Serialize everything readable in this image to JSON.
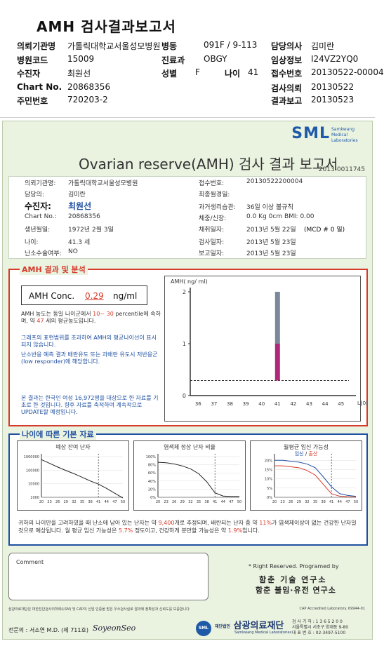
{
  "header": {
    "title": "AMH 검사결과보고서",
    "rows": [
      {
        "l1": "의뢰기관명",
        "v1": "가톨릭대학교서울성모병원",
        "l2": "병동",
        "v2": "091F / 9-113",
        "l3": "담당의사",
        "v3": "김미란"
      },
      {
        "l1": "병원코드",
        "v1": "15009",
        "l2": "진료과",
        "v2": "OBGY",
        "l3": "임상정보",
        "v3": "I24VZ2YQ0"
      },
      {
        "l1": "수진자",
        "v1": "최원선",
        "l2": "성별",
        "v2": "F",
        "l2b": "나이",
        "v2b": "41",
        "l3": "접수번호",
        "v3": "20130522-00004"
      },
      {
        "l1": "Chart No.",
        "v1": "20868356",
        "l2": "",
        "v2": "",
        "l3": "검사의뢰",
        "v3": "20130522"
      },
      {
        "l1": "주민번호",
        "v1": "720203-2",
        "l2": "",
        "v2": "",
        "l3": "결과보고",
        "v3": "20130523"
      }
    ]
  },
  "report": {
    "logo": "SML",
    "logo_sub": "Samkwang Medical Laboratories",
    "title": "Ovarian reserve(AMH) 검사 결과 보고서",
    "number": "2013-0011745",
    "info_left": [
      {
        "label": "의뢰기관명:",
        "value": "가톨릭대학교서울성모병원"
      },
      {
        "label": "담당의:",
        "value": "김미란"
      },
      {
        "label": "수진자:",
        "value": "최원선"
      },
      {
        "label": "Chart No.:",
        "value": "20868356"
      },
      {
        "label": "생년월일:",
        "value": "1972년 2월 3일"
      },
      {
        "label": "나이:",
        "value": "41.3 세"
      },
      {
        "label": "난소수술여부:",
        "value": "NO"
      }
    ],
    "info_right": [
      {
        "label": "접수번호:",
        "value": "20130522200004"
      },
      {
        "label": "최종월경일:",
        "value": ""
      },
      {
        "label": "과거생리습관:",
        "value": "36일 이상 불규칙"
      },
      {
        "label": "체중/신장:",
        "value": "0.0  Kg        0cm    BMI:   0.00"
      },
      {
        "label": "채취일자:",
        "value": "2013년 5월 22일"
      },
      {
        "label": "검사일자:",
        "value": "2013년 5월 23일"
      },
      {
        "label": "보고일자:",
        "value": "2013년 5월 23일"
      }
    ],
    "mcd": "(MCD # 0 일)"
  },
  "amh": {
    "section_title": "AMH 결과 및 분석",
    "conc_label": "AMH Conc.",
    "conc_value": "0.29",
    "conc_unit": "ng/ml",
    "p1_a": "AMH 농도는 동일 나이군에서",
    "p1_range": "10~ 30",
    "p1_b": "percentile에 속하며, 약",
    "p1_age": "47",
    "p1_c": "세의 평균농도입니다.",
    "p2": "그래프의 표현범위를 초과하여 AMH의 평균나이선이 표시되지 않습니다.",
    "p3": "난소반응 예측 결과 배란유도 또는 과배란 유도시 저반응군 (low responder)에 해당합니다.",
    "p4": "본 결과는 한국인 여성 16,972명을 대상으로 한 자료를 기초로 한 것입니다. 향후 자료를 축적하여 계속적으로 UPDATE할 예정입니다."
  },
  "age": {
    "section_title": "나이에 따른 기본 자료",
    "chart_titles": [
      "예상 잔여 난자",
      "염색체 정상 난자 비율",
      "월평균 임신 가능성"
    ],
    "legend_pregnancy": "임신",
    "legend_birth": "출산",
    "summary_a": "귀하의 나이만을 고려하였을 때 난소에 남아 있는 난자는 약",
    "summary_eggs": "9,400",
    "summary_b": "개로 추정되며, 배란되는 난자 중 약",
    "summary_pct": "11%",
    "summary_c": "가 염색체이상이 없는 건강한 난자일 것으로 예상됩니다. 월 평균 임신 가능성은",
    "summary_preg": "5.7%",
    "summary_d": "정도이고, 건강하게 분만할 가능성은 약",
    "summary_birth": "1.9%",
    "summary_e": "입니다."
  },
  "footer": {
    "comment_label": "Comment",
    "rights": "* Right Reserved. Programed by",
    "inst1": "함춘 기술 연구소",
    "inst2": "함춘 불임·유전 연구소",
    "accr": "삼광의료재단은 대한진단검사의학회(LSM) 및 CAP의 신임 인증을 받은 우수검사실로 결과에 정확성과 신뢰도를 보증합니다.",
    "cap": "CAP  Accredited  Laboratory.  69944-01",
    "sign": "전문의 : 서소연 M.D. (제 711호)",
    "signature": "SoyeonSeo",
    "foundation": "삼광의료재단",
    "foundation_prefix": "재단법인",
    "foundation_sub": "Samkwang Medical Laboratories",
    "contact1": "검 사 기 하 : 1 3 6 5 2 0 0",
    "contact2": "서울특별시 서초구 양재동 9-80",
    "contact3": "대 표 번 호 : 02-3497-5100"
  },
  "colors": {
    "accent_red": "#d63a2a",
    "accent_blue": "#1f4fa0",
    "paper_green": "#eaf2e0"
  },
  "chart_data": [
    {
      "type": "bar",
      "title": "",
      "ylabel": "AMH( ng/ ml)",
      "xlabel": "나이",
      "categories": [
        "36",
        "37",
        "38",
        "39",
        "40",
        "41",
        "42",
        "43",
        "44",
        "45"
      ],
      "ylim": [
        0,
        2
      ],
      "yticks": [
        "0",
        "1",
        "2"
      ],
      "range_bar": {
        "x": "41",
        "upper_range": [
          1.0,
          2.0
        ],
        "lower_range": [
          0.29,
          1.0
        ]
      },
      "reference_line": 0.29
    },
    {
      "type": "line",
      "title": "예상 잔여 난자",
      "x": [
        20,
        23,
        26,
        29,
        32,
        35,
        38,
        41,
        44,
        47,
        50
      ],
      "xticks": [
        "20",
        "23",
        "26",
        "29",
        "32",
        "35",
        "38",
        "41",
        "44",
        "47",
        "50"
      ],
      "yticks": [
        "1000000",
        "100000",
        "10000",
        "1000"
      ],
      "log_scale": true,
      "series": [
        {
          "values": [
            600000,
            320000,
            170000,
            95000,
            55000,
            30000,
            16000,
            9400,
            4500,
            2000,
            900
          ]
        }
      ],
      "marker_x": 41
    },
    {
      "type": "line",
      "title": "염색체 정상 난자 비율",
      "x": [
        20,
        23,
        26,
        29,
        32,
        35,
        38,
        41,
        44,
        47,
        50
      ],
      "xticks": [
        "20",
        "23",
        "26",
        "29",
        "32",
        "35",
        "38",
        "41",
        "44",
        "47",
        "50"
      ],
      "yticks": [
        "100%",
        "80%",
        "60%",
        "40%",
        "20%",
        "0%"
      ],
      "ylim": [
        0,
        100
      ],
      "series": [
        {
          "values": [
            86,
            85,
            82,
            77,
            70,
            58,
            38,
            11,
            3,
            2,
            2
          ]
        }
      ],
      "marker_x": 41
    },
    {
      "type": "line",
      "title": "월평균 임신 가능성",
      "x": [
        20,
        23,
        26,
        29,
        32,
        35,
        38,
        41,
        44,
        47,
        50
      ],
      "xticks": [
        "20",
        "23",
        "26",
        "29",
        "32",
        "35",
        "38",
        "41",
        "44",
        "47",
        "50"
      ],
      "yticks": [
        "20%",
        "15%",
        "10%",
        "5%",
        "0%"
      ],
      "ylim": [
        0,
        22
      ],
      "series": [
        {
          "name": "임신",
          "values": [
            20,
            20,
            19.5,
            19,
            18,
            16,
            11,
            5.7,
            2,
            1,
            0.5
          ]
        },
        {
          "name": "출산",
          "values": [
            17,
            17,
            16.5,
            16,
            14.5,
            12,
            7,
            1.9,
            0.6,
            0.3,
            0.2
          ]
        }
      ],
      "marker_x": 41
    }
  ]
}
